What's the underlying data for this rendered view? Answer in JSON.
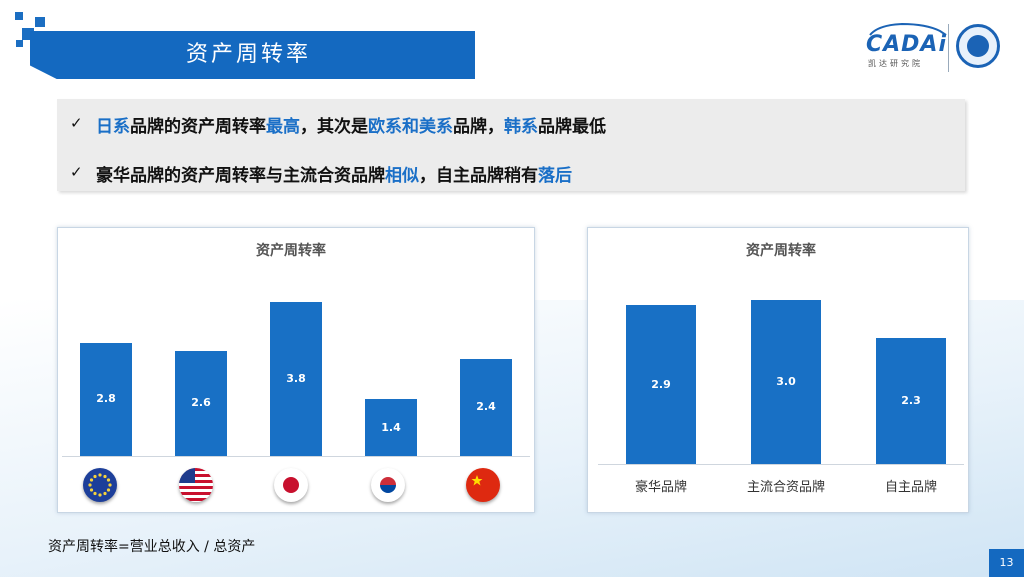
{
  "header": {
    "title": "资产周转率",
    "logo_text": "CADAi",
    "logo_subtitle": "凯达研究院"
  },
  "summary": {
    "point1": [
      {
        "t": "日系",
        "hl": true
      },
      {
        "t": "品牌的资产周转率",
        "hl": false
      },
      {
        "t": "最高",
        "hl": true
      },
      {
        "t": "，其次是",
        "hl": false
      },
      {
        "t": "欧系和美系",
        "hl": true
      },
      {
        "t": "品牌，",
        "hl": false
      },
      {
        "t": "韩系",
        "hl": true
      },
      {
        "t": "品牌最低",
        "hl": false
      }
    ],
    "point2": [
      {
        "t": "豪华品牌的资产周转率与主流合资品牌",
        "hl": false
      },
      {
        "t": "相似",
        "hl": true
      },
      {
        "t": "，自主品牌稍有",
        "hl": false
      },
      {
        "t": "落后",
        "hl": true
      }
    ],
    "check_glyph": "✓"
  },
  "chart_data": [
    {
      "type": "bar",
      "title": "资产周转率",
      "categories": [
        "EU",
        "US",
        "Japan",
        "Korea",
        "China"
      ],
      "category_icons": [
        "eu-flag-icon",
        "us-flag-icon",
        "japan-flag-icon",
        "korea-flag-icon",
        "china-flag-icon"
      ],
      "values": [
        2.8,
        2.6,
        3.8,
        1.4,
        2.4
      ],
      "value_labels": [
        "2.8",
        "2.6",
        "3.8",
        "1.4",
        "2.4"
      ],
      "ylim": [
        0,
        4.4
      ],
      "bar_color": "#1870c5"
    },
    {
      "type": "bar",
      "title": "资产周转率",
      "categories": [
        "豪华品牌",
        "主流合资品牌",
        "自主品牌"
      ],
      "values": [
        2.9,
        3.0,
        2.3
      ],
      "value_labels": [
        "2.9",
        "3.0",
        "2.3"
      ],
      "ylim": [
        0,
        3.4
      ],
      "bar_color": "#1870c5"
    }
  ],
  "footer": {
    "formula": "资产周转率=营业总收入 / 总资产",
    "page_number": "13"
  },
  "colors": {
    "accent": "#1469c0",
    "highlight": "#1a6fc7"
  }
}
